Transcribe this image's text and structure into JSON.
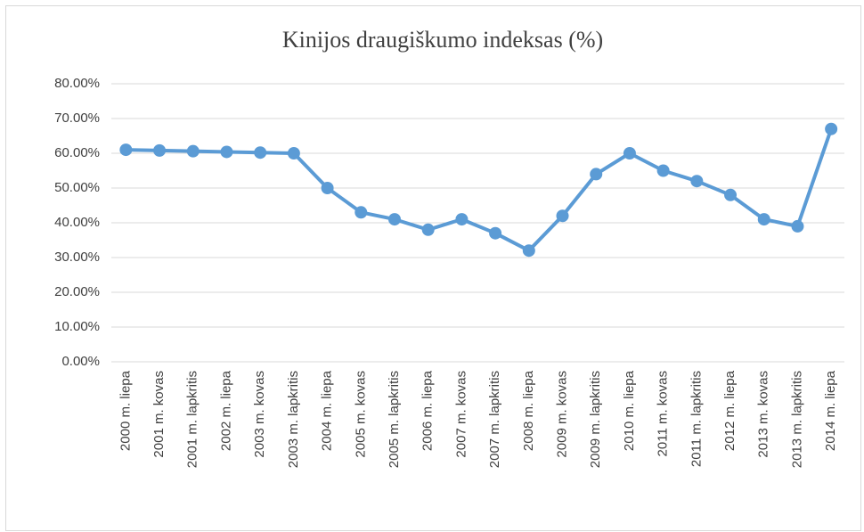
{
  "chart_data": {
    "type": "line",
    "title": "Kinijos draugiškumo indeksas (%)",
    "categories": [
      "2000 m. liepa",
      "2001 m. kovas",
      "2001 m. lapkritis",
      "2002 m. liepa",
      "2003 m. kovas",
      "2003 m. lapkritis",
      "2004 m. liepa",
      "2005 m. kovas",
      "2005 m. lapkritis",
      "2006 m. liepa",
      "2007 m. kovas",
      "2007 m. lapkritis",
      "2008 m. liepa",
      "2009 m. kovas",
      "2009 m. lapkritis",
      "2010 m. liepa",
      "2011 m. kovas",
      "2011 m. lapkritis",
      "2012 m. liepa",
      "2013 m. kovas",
      "2013 m. lapkritis",
      "2014 m. liepa"
    ],
    "values": [
      61,
      60.8,
      60.6,
      60.4,
      60.2,
      60,
      50,
      43,
      41,
      38,
      41,
      37,
      32,
      42,
      54,
      60,
      55,
      52,
      48,
      41,
      39,
      67
    ],
    "color": "#5b9bd5",
    "ylim": [
      0,
      80
    ],
    "yticks": [
      {
        "value": 0,
        "label": "0.00%"
      },
      {
        "value": 10,
        "label": "10.00%"
      },
      {
        "value": 20,
        "label": "20.00%"
      },
      {
        "value": 30,
        "label": "30.00%"
      },
      {
        "value": 40,
        "label": "40.00%"
      },
      {
        "value": 50,
        "label": "50.00%"
      },
      {
        "value": 60,
        "label": "60.00%"
      },
      {
        "value": 70,
        "label": "70.00%"
      },
      {
        "value": 80,
        "label": "80.00%"
      }
    ],
    "grid": true
  }
}
